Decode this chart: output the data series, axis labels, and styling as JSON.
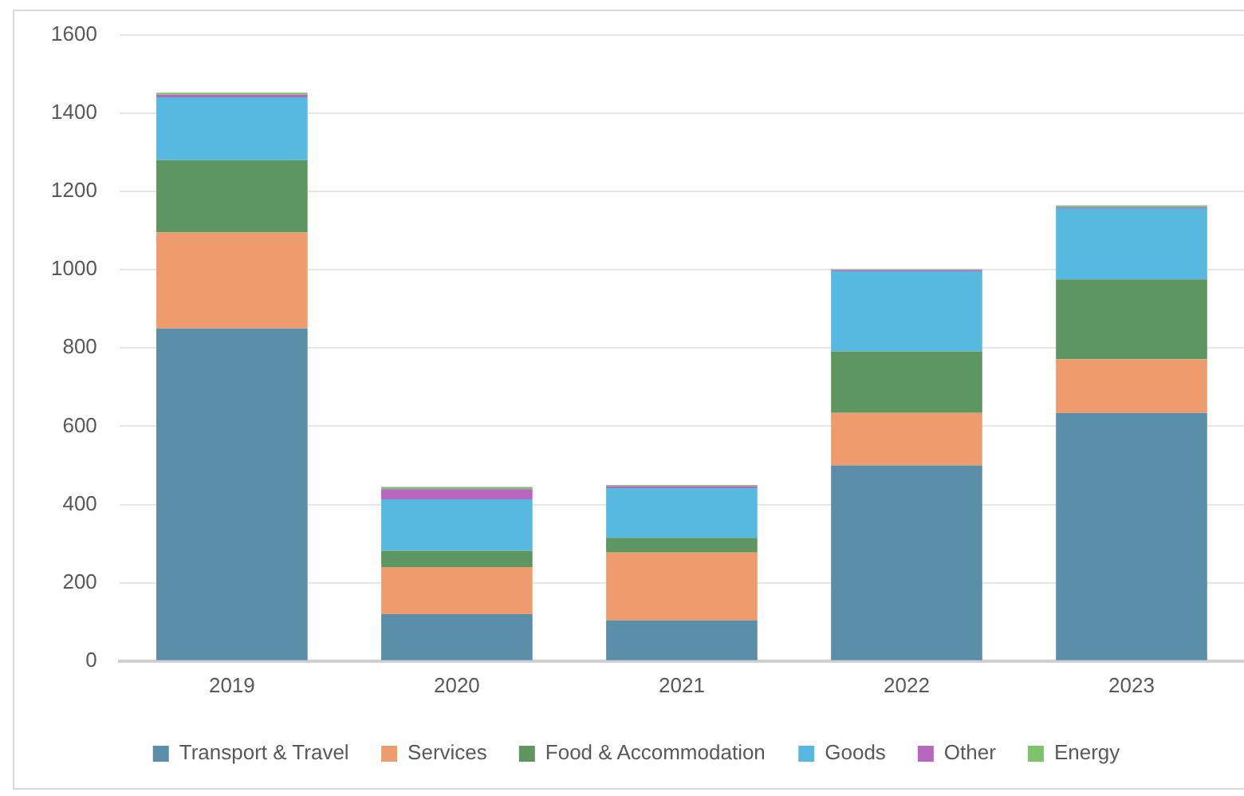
{
  "chart_data": {
    "type": "bar",
    "stacked": true,
    "categories": [
      "2019",
      "2020",
      "2021",
      "2022",
      "2023"
    ],
    "series": [
      {
        "name": "Transport & Travel",
        "color": "#5b8ea8",
        "values": [
          850,
          120,
          104,
          500,
          634
        ]
      },
      {
        "name": "Services",
        "color": "#ee9b6e",
        "values": [
          245,
          120,
          173,
          134,
          137
        ]
      },
      {
        "name": "Food & Accommodation",
        "color": "#5e9662",
        "values": [
          185,
          42,
          38,
          157,
          204
        ]
      },
      {
        "name": "Goods",
        "color": "#58b9e0",
        "values": [
          160,
          131,
          127,
          205,
          182
        ]
      },
      {
        "name": "Other",
        "color": "#b866bf",
        "values": [
          7,
          26,
          5,
          3,
          3
        ]
      },
      {
        "name": "Energy",
        "color": "#7dc36b",
        "values": [
          5,
          6,
          3,
          2,
          4
        ]
      }
    ],
    "ylim": [
      0,
      1600
    ],
    "yticks": [
      0,
      200,
      400,
      600,
      800,
      1000,
      1200,
      1400,
      1600
    ],
    "grid": "y",
    "legend": "bottom"
  }
}
